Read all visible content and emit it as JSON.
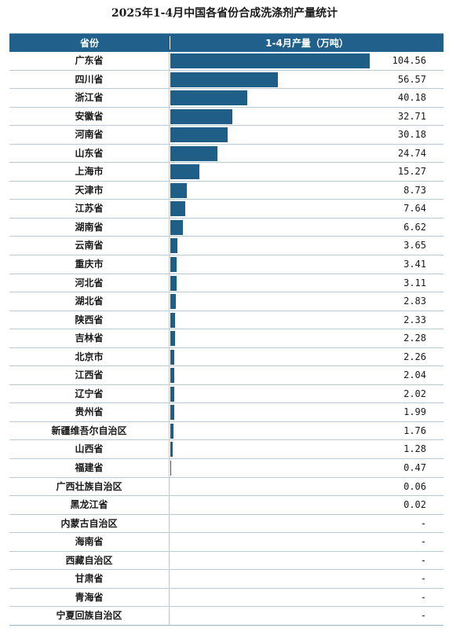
{
  "chart_data": {
    "type": "bar",
    "title": "2025年1-4月中国各省份合成洗涤剂产量统计",
    "header_category": "省份",
    "header_value": "1-4月产量（万吨）",
    "categories": [
      "广东省",
      "四川省",
      "浙江省",
      "安徽省",
      "河南省",
      "山东省",
      "上海市",
      "天津市",
      "江苏省",
      "湖南省",
      "云南省",
      "重庆市",
      "河北省",
      "湖北省",
      "陕西省",
      "吉林省",
      "北京市",
      "江西省",
      "辽宁省",
      "贵州省",
      "新疆维吾尔自治区",
      "山西省",
      "福建省",
      "广西壮族自治区",
      "黑龙江省",
      "内蒙古自治区",
      "海南省",
      "西藏自治区",
      "甘肃省",
      "青海省",
      "宁夏回族自治区"
    ],
    "values": [
      104.56,
      56.57,
      40.18,
      32.71,
      30.18,
      24.74,
      15.27,
      8.73,
      7.64,
      6.62,
      3.65,
      3.41,
      3.11,
      2.83,
      2.33,
      2.28,
      2.26,
      2.04,
      2.02,
      1.99,
      1.76,
      1.28,
      0.47,
      0.06,
      0.02,
      null,
      null,
      null,
      null,
      null,
      null
    ],
    "value_labels": [
      "104.56",
      "56.57",
      "40.18",
      "32.71",
      "30.18",
      "24.74",
      "15.27",
      "8.73",
      "7.64",
      "6.62",
      "3.65",
      "3.41",
      "3.11",
      "2.83",
      "2.33",
      "2.28",
      "2.26",
      "2.04",
      "2.02",
      "1.99",
      "1.76",
      "1.28",
      "0.47",
      "0.06",
      "0.02",
      "-",
      "-",
      "-",
      "-",
      "-",
      "-"
    ],
    "bar_color": "#1f5f87",
    "header_color": "#20608a"
  }
}
